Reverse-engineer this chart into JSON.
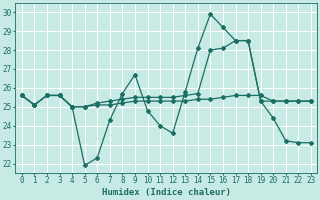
{
  "xlabel": "Humidex (Indice chaleur)",
  "xlim": [
    -0.5,
    23.5
  ],
  "ylim": [
    21.5,
    30.5
  ],
  "xticks": [
    0,
    1,
    2,
    3,
    4,
    5,
    6,
    7,
    8,
    9,
    10,
    11,
    12,
    13,
    14,
    15,
    16,
    17,
    18,
    19,
    20,
    21,
    22,
    23
  ],
  "yticks": [
    22,
    23,
    24,
    25,
    26,
    27,
    28,
    29,
    30
  ],
  "bg_color": "#c8eae4",
  "line_color": "#1a6e64",
  "series": [
    [
      25.6,
      25.1,
      25.6,
      25.6,
      25.0,
      21.9,
      22.3,
      24.3,
      25.7,
      26.7,
      24.8,
      24.0,
      23.6,
      25.8,
      28.1,
      29.9,
      29.2,
      28.5,
      28.5,
      25.3,
      24.4,
      23.2,
      23.1,
      23.1
    ],
    [
      25.6,
      25.1,
      25.6,
      25.6,
      25.0,
      25.0,
      25.2,
      25.3,
      25.4,
      25.5,
      25.5,
      25.5,
      25.5,
      25.6,
      25.7,
      28.0,
      28.1,
      28.5,
      28.5,
      25.3,
      25.3,
      25.3,
      25.3,
      25.3
    ],
    [
      25.6,
      25.1,
      25.6,
      25.6,
      25.0,
      25.0,
      25.1,
      25.1,
      25.2,
      25.3,
      25.3,
      25.3,
      25.3,
      25.3,
      25.4,
      25.4,
      25.5,
      25.6,
      25.6,
      25.6,
      25.3,
      25.3,
      25.3,
      25.3
    ]
  ],
  "grid_color": "#ffffff",
  "marker": "D",
  "markersize": 2.0,
  "linewidth": 0.9,
  "xlabel_fontsize": 6.5,
  "tick_fontsize": 5.5
}
